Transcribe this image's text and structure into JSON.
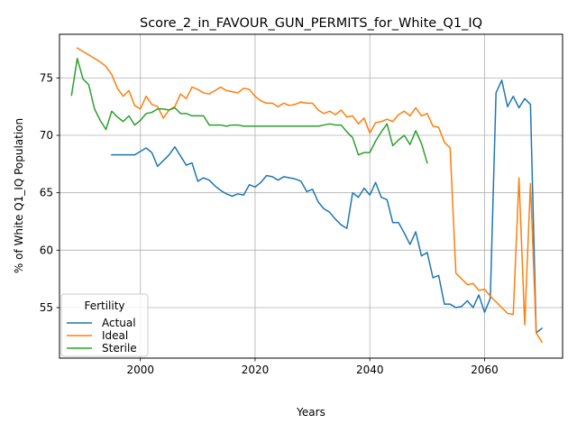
{
  "chart_data": {
    "type": "line",
    "title": "Score_2_in_FAVOUR_GUN_PERMITS_for_White_Q1_IQ",
    "xlabel": "Years",
    "ylabel": "% of White Q1_IQ Population",
    "xlim": [
      1985.9,
      2073.6
    ],
    "ylim": [
      50.6,
      78.8
    ],
    "xticks": [
      2000,
      2020,
      2040,
      2060
    ],
    "yticks": [
      55,
      60,
      65,
      70,
      75
    ],
    "grid": true,
    "legend": {
      "title": "Fertility",
      "placement": "lower-left"
    },
    "series": [
      {
        "name": "Actual",
        "color": "#1f77b4",
        "points": [
          [
            1995,
            68.3
          ],
          [
            1996,
            68.3
          ],
          [
            1997,
            68.3
          ],
          [
            1998,
            68.3
          ],
          [
            1999,
            68.3
          ],
          [
            2000,
            68.6
          ],
          [
            2001,
            68.9
          ],
          [
            2002,
            68.5
          ],
          [
            2003,
            67.3
          ],
          [
            2004,
            67.8
          ],
          [
            2005,
            68.3
          ],
          [
            2006,
            69.0
          ],
          [
            2007,
            68.2
          ],
          [
            2008,
            67.4
          ],
          [
            2009,
            67.6
          ],
          [
            2010,
            66.0
          ],
          [
            2011,
            66.3
          ],
          [
            2012,
            66.1
          ],
          [
            2013,
            65.6
          ],
          [
            2014,
            65.2
          ],
          [
            2015,
            64.9
          ],
          [
            2016,
            64.7
          ],
          [
            2017,
            64.9
          ],
          [
            2018,
            64.8
          ],
          [
            2019,
            65.7
          ],
          [
            2020,
            65.5
          ],
          [
            2021,
            65.9
          ],
          [
            2022,
            66.5
          ],
          [
            2023,
            66.4
          ],
          [
            2024,
            66.1
          ],
          [
            2025,
            66.4
          ],
          [
            2026,
            66.3
          ],
          [
            2027,
            66.2
          ],
          [
            2028,
            66.0
          ],
          [
            2029,
            65.1
          ],
          [
            2030,
            65.3
          ],
          [
            2031,
            64.2
          ],
          [
            2032,
            63.6
          ],
          [
            2033,
            63.3
          ],
          [
            2034,
            62.7
          ],
          [
            2035,
            62.2
          ],
          [
            2036,
            61.9
          ],
          [
            2037,
            65.0
          ],
          [
            2038,
            64.6
          ],
          [
            2039,
            65.4
          ],
          [
            2040,
            64.8
          ],
          [
            2041,
            65.9
          ],
          [
            2042,
            64.6
          ],
          [
            2043,
            64.4
          ],
          [
            2044,
            62.4
          ],
          [
            2045,
            62.4
          ],
          [
            2046,
            61.5
          ],
          [
            2047,
            60.5
          ],
          [
            2048,
            61.6
          ],
          [
            2049,
            59.5
          ],
          [
            2050,
            59.8
          ],
          [
            2051,
            57.6
          ],
          [
            2052,
            57.8
          ],
          [
            2053,
            55.3
          ],
          [
            2054,
            55.3
          ],
          [
            2055,
            55.0
          ],
          [
            2056,
            55.1
          ],
          [
            2057,
            55.6
          ],
          [
            2058,
            55.0
          ],
          [
            2059,
            56.1
          ],
          [
            2060,
            54.6
          ],
          [
            2061,
            55.8
          ],
          [
            2062,
            73.7
          ],
          [
            2063,
            74.8
          ],
          [
            2064,
            72.5
          ],
          [
            2065,
            73.4
          ],
          [
            2066,
            72.4
          ],
          [
            2067,
            73.2
          ],
          [
            2068,
            72.7
          ],
          [
            2069,
            52.8
          ],
          [
            2070,
            53.2
          ]
        ]
      },
      {
        "name": "Ideal",
        "color": "#ff7f0e",
        "points": [
          [
            1989,
            77.6
          ],
          [
            1990,
            77.3
          ],
          [
            1991,
            77.0
          ],
          [
            1992,
            76.7
          ],
          [
            1993,
            76.4
          ],
          [
            1994,
            76.0
          ],
          [
            1995,
            75.3
          ],
          [
            1996,
            74.1
          ],
          [
            1997,
            73.4
          ],
          [
            1998,
            73.9
          ],
          [
            1999,
            72.6
          ],
          [
            2000,
            72.3
          ],
          [
            2001,
            73.4
          ],
          [
            2002,
            72.7
          ],
          [
            2003,
            72.5
          ],
          [
            2004,
            71.5
          ],
          [
            2005,
            72.2
          ],
          [
            2006,
            72.5
          ],
          [
            2007,
            73.6
          ],
          [
            2008,
            73.2
          ],
          [
            2009,
            74.2
          ],
          [
            2010,
            74.0
          ],
          [
            2011,
            73.7
          ],
          [
            2012,
            73.6
          ],
          [
            2013,
            73.9
          ],
          [
            2014,
            74.2
          ],
          [
            2015,
            73.9
          ],
          [
            2016,
            73.8
          ],
          [
            2017,
            73.7
          ],
          [
            2018,
            74.1
          ],
          [
            2019,
            74.0
          ],
          [
            2020,
            73.4
          ],
          [
            2021,
            73.0
          ],
          [
            2022,
            72.8
          ],
          [
            2023,
            72.8
          ],
          [
            2024,
            72.5
          ],
          [
            2025,
            72.8
          ],
          [
            2026,
            72.6
          ],
          [
            2027,
            72.7
          ],
          [
            2028,
            72.9
          ],
          [
            2029,
            72.8
          ],
          [
            2030,
            72.8
          ],
          [
            2031,
            72.2
          ],
          [
            2032,
            71.9
          ],
          [
            2033,
            72.1
          ],
          [
            2034,
            71.8
          ],
          [
            2035,
            72.2
          ],
          [
            2036,
            71.6
          ],
          [
            2037,
            71.7
          ],
          [
            2038,
            71.0
          ],
          [
            2039,
            71.5
          ],
          [
            2040,
            70.2
          ],
          [
            2041,
            71.1
          ],
          [
            2042,
            71.2
          ],
          [
            2043,
            71.4
          ],
          [
            2044,
            71.2
          ],
          [
            2045,
            71.8
          ],
          [
            2046,
            72.1
          ],
          [
            2047,
            71.7
          ],
          [
            2048,
            72.4
          ],
          [
            2049,
            71.7
          ],
          [
            2050,
            71.9
          ],
          [
            2051,
            70.8
          ],
          [
            2052,
            70.7
          ],
          [
            2053,
            69.4
          ],
          [
            2054,
            68.9
          ],
          [
            2055,
            58.0
          ],
          [
            2056,
            57.5
          ],
          [
            2057,
            57.0
          ],
          [
            2058,
            57.1
          ],
          [
            2059,
            56.5
          ],
          [
            2060,
            56.6
          ],
          [
            2061,
            56.0
          ],
          [
            2062,
            55.5
          ],
          [
            2063,
            55.0
          ],
          [
            2064,
            54.5
          ],
          [
            2065,
            54.4
          ],
          [
            2066,
            66.3
          ],
          [
            2067,
            53.5
          ],
          [
            2068,
            65.8
          ],
          [
            2069,
            52.8
          ],
          [
            2070,
            52.0
          ]
        ]
      },
      {
        "name": "Sterile",
        "color": "#2ca02c",
        "points": [
          [
            1988,
            73.5
          ],
          [
            1989,
            76.7
          ],
          [
            1990,
            74.9
          ],
          [
            1991,
            74.4
          ],
          [
            1992,
            72.3
          ],
          [
            1993,
            71.3
          ],
          [
            1994,
            70.5
          ],
          [
            1995,
            72.1
          ],
          [
            1996,
            71.6
          ],
          [
            1997,
            71.2
          ],
          [
            1998,
            71.7
          ],
          [
            1999,
            70.9
          ],
          [
            2000,
            71.3
          ],
          [
            2001,
            71.9
          ],
          [
            2002,
            72.0
          ],
          [
            2003,
            72.3
          ],
          [
            2004,
            72.3
          ],
          [
            2005,
            72.2
          ],
          [
            2006,
            72.4
          ],
          [
            2007,
            71.9
          ],
          [
            2008,
            71.9
          ],
          [
            2009,
            71.7
          ],
          [
            2010,
            71.7
          ],
          [
            2011,
            71.7
          ],
          [
            2012,
            70.9
          ],
          [
            2013,
            70.9
          ],
          [
            2014,
            70.9
          ],
          [
            2015,
            70.8
          ],
          [
            2016,
            70.9
          ],
          [
            2017,
            70.9
          ],
          [
            2018,
            70.8
          ],
          [
            2019,
            70.8
          ],
          [
            2020,
            70.8
          ],
          [
            2021,
            70.8
          ],
          [
            2022,
            70.8
          ],
          [
            2023,
            70.8
          ],
          [
            2024,
            70.8
          ],
          [
            2025,
            70.8
          ],
          [
            2026,
            70.8
          ],
          [
            2027,
            70.8
          ],
          [
            2028,
            70.8
          ],
          [
            2029,
            70.8
          ],
          [
            2030,
            70.8
          ],
          [
            2031,
            70.8
          ],
          [
            2032,
            70.9
          ],
          [
            2033,
            71.0
          ],
          [
            2034,
            70.9
          ],
          [
            2035,
            70.9
          ],
          [
            2036,
            70.3
          ],
          [
            2037,
            69.8
          ],
          [
            2038,
            68.3
          ],
          [
            2039,
            68.5
          ],
          [
            2040,
            68.5
          ],
          [
            2041,
            69.5
          ],
          [
            2042,
            70.3
          ],
          [
            2043,
            71.0
          ],
          [
            2044,
            69.1
          ],
          [
            2045,
            69.6
          ],
          [
            2046,
            70.0
          ],
          [
            2047,
            69.2
          ],
          [
            2048,
            70.4
          ],
          [
            2049,
            69.3
          ],
          [
            2050,
            67.6
          ]
        ]
      }
    ]
  }
}
